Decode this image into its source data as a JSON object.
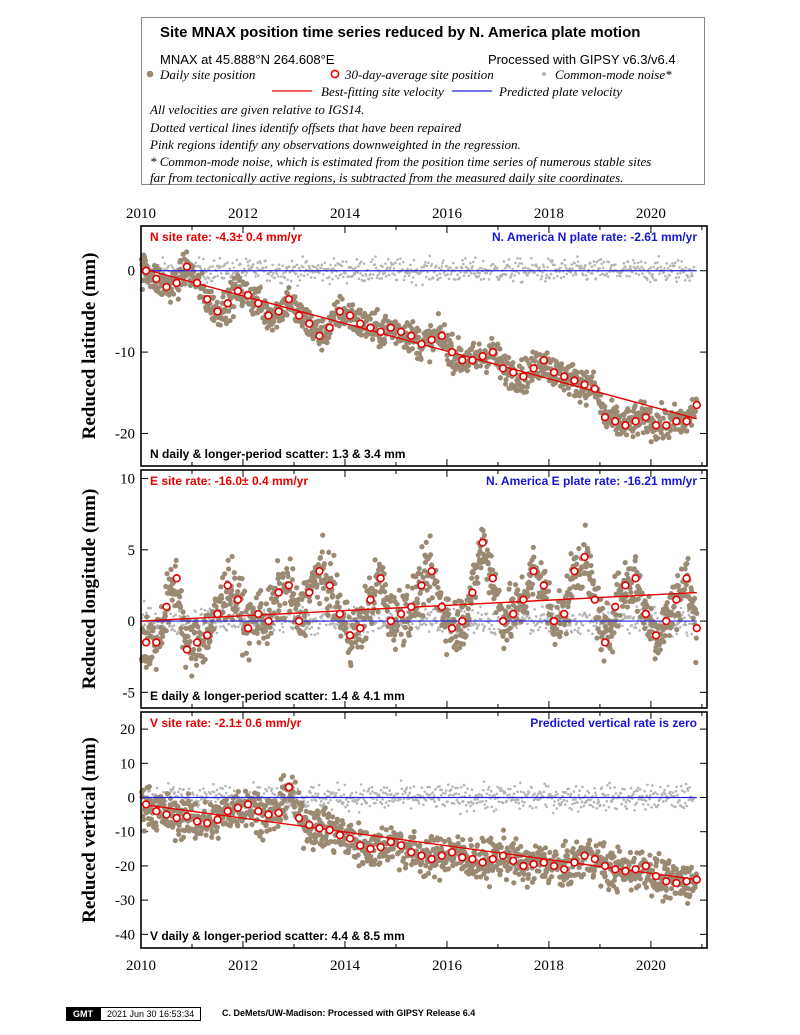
{
  "header": {
    "title": "Site MNAX position time series reduced by N. America plate motion",
    "location": "MNAX at 45.888°N 264.608°E",
    "processing": "Processed with GIPSY v6.3/v6.4",
    "legend": {
      "daily": "Daily site position",
      "avg30": "30-day-average site position",
      "common": "Common-mode noise*",
      "best_fit": "Best-fitting site velocity",
      "predicted": "Predicted plate velocity"
    },
    "notes": [
      "All velocities are given relative to IGS14.",
      "Dotted vertical lines identify offsets that have been repaired",
      "Pink regions identify any observations downweighted in the regression.",
      "* Common-mode noise, which is estimated from the position time series of numerous stable sites",
      "far from tectonically active regions, is subtracted from the measured daily site coordinates."
    ]
  },
  "colors": {
    "daily": "#9b8a73",
    "avg30_edge": "#e60000",
    "common": "#b5b5b5",
    "best_fit": "#e60000",
    "predicted": "#2222dd",
    "site_rate_text": "#e60000",
    "plate_rate_text": "#1515d8"
  },
  "chart_data": [
    {
      "type": "scatter",
      "component": "N",
      "ylabel": "Reduced latitude (mm)",
      "xlim": [
        2010,
        2021.1
      ],
      "ylim": [
        -24,
        5.5
      ],
      "xticks": [
        2010,
        2012,
        2014,
        2016,
        2018,
        2020
      ],
      "yticks": [
        0,
        -10,
        -20
      ],
      "site_rate": "N site rate:  -4.3± 0.4 mm/yr",
      "plate_rate": "N. America N plate rate: -2.61 mm/yr",
      "scatter": "N daily & longer-period scatter:   1.3 &   3.4 mm",
      "fit_line": {
        "x": [
          2010.0,
          2020.9
        ],
        "y": [
          0.3,
          -18.2
        ]
      },
      "predicted_line": {
        "x": [
          2010.0,
          2020.9
        ],
        "y": [
          0,
          0
        ]
      },
      "avg30": {
        "x": [
          2010.1,
          2010.3,
          2010.5,
          2010.7,
          2010.9,
          2011.1,
          2011.3,
          2011.5,
          2011.7,
          2011.9,
          2012.1,
          2012.3,
          2012.5,
          2012.7,
          2012.9,
          2013.1,
          2013.3,
          2013.5,
          2013.7,
          2013.9,
          2014.1,
          2014.3,
          2014.5,
          2014.7,
          2014.9,
          2015.1,
          2015.3,
          2015.5,
          2015.7,
          2015.9,
          2016.1,
          2016.3,
          2016.5,
          2016.7,
          2016.9,
          2017.1,
          2017.3,
          2017.5,
          2017.7,
          2017.9,
          2018.1,
          2018.3,
          2018.5,
          2018.7,
          2018.9,
          2019.1,
          2019.3,
          2019.5,
          2019.7,
          2019.9,
          2020.1,
          2020.3,
          2020.5,
          2020.7,
          2020.9
        ],
        "y": [
          0.0,
          -1.0,
          -2.0,
          -1.5,
          0.5,
          -1.5,
          -3.5,
          -5.0,
          -4.0,
          -2.5,
          -3.0,
          -4.0,
          -5.5,
          -5.0,
          -3.5,
          -5.5,
          -6.5,
          -8.0,
          -7.0,
          -5.0,
          -5.5,
          -6.5,
          -7.0,
          -7.5,
          -7.0,
          -7.5,
          -8.0,
          -9.0,
          -8.5,
          -8.0,
          -10.0,
          -11.0,
          -11.0,
          -10.5,
          -10.0,
          -12.0,
          -12.5,
          -13.0,
          -12.0,
          -11.0,
          -12.5,
          -13.0,
          -13.5,
          -14.0,
          -14.5,
          -18.0,
          -18.5,
          -19.0,
          -18.5,
          -18.0,
          -19.0,
          -19.0,
          -18.5,
          -18.5,
          -16.5
        ]
      }
    },
    {
      "type": "scatter",
      "component": "E",
      "ylabel": "Reduced longitude (mm)",
      "xlim": [
        2010,
        2021.1
      ],
      "ylim": [
        -6.1,
        10.6
      ],
      "xticks": [
        2010,
        2012,
        2014,
        2016,
        2018,
        2020
      ],
      "yticks": [
        10,
        5,
        0,
        -5
      ],
      "site_rate": "E site rate: -16.0± 0.4 mm/yr",
      "plate_rate": "N. America E plate rate: -16.21 mm/yr",
      "scatter": "E daily & longer-period scatter:   1.4 &   4.1 mm",
      "fit_line": {
        "x": [
          2010.0,
          2020.9
        ],
        "y": [
          0.0,
          2.0
        ]
      },
      "predicted_line": {
        "x": [
          2010.0,
          2020.9
        ],
        "y": [
          0,
          0
        ]
      },
      "avg30": {
        "x": [
          2010.1,
          2010.3,
          2010.5,
          2010.7,
          2010.9,
          2011.1,
          2011.3,
          2011.5,
          2011.7,
          2011.9,
          2012.1,
          2012.3,
          2012.5,
          2012.7,
          2012.9,
          2013.1,
          2013.3,
          2013.5,
          2013.7,
          2013.9,
          2014.1,
          2014.3,
          2014.5,
          2014.7,
          2014.9,
          2015.1,
          2015.3,
          2015.5,
          2015.7,
          2015.9,
          2016.1,
          2016.3,
          2016.5,
          2016.7,
          2016.9,
          2017.1,
          2017.3,
          2017.5,
          2017.7,
          2017.9,
          2018.1,
          2018.3,
          2018.5,
          2018.7,
          2018.9,
          2019.1,
          2019.3,
          2019.5,
          2019.7,
          2019.9,
          2020.1,
          2020.3,
          2020.5,
          2020.7,
          2020.9
        ],
        "y": [
          -1.5,
          -1.5,
          1.0,
          3.0,
          -2.0,
          -1.5,
          -1.0,
          0.5,
          2.5,
          1.5,
          -0.5,
          0.5,
          0.0,
          2.0,
          2.5,
          0.0,
          2.0,
          3.5,
          2.5,
          0.5,
          -1.0,
          -0.5,
          1.5,
          3.0,
          0.0,
          0.5,
          1.0,
          2.5,
          3.5,
          1.0,
          -0.5,
          0.0,
          2.0,
          5.5,
          3.0,
          0.0,
          0.5,
          1.5,
          3.5,
          2.5,
          0.0,
          0.5,
          3.5,
          4.5,
          1.5,
          -1.5,
          1.0,
          2.5,
          3.0,
          0.5,
          -1.0,
          0.0,
          1.5,
          3.0,
          -0.5
        ]
      }
    },
    {
      "type": "scatter",
      "component": "V",
      "ylabel": "Reduced vertical (mm)",
      "xlim": [
        2010,
        2021.1
      ],
      "ylim": [
        -44,
        25
      ],
      "xticks": [
        2010,
        2012,
        2014,
        2016,
        2018,
        2020
      ],
      "yticks": [
        20,
        10,
        0,
        -10,
        -20,
        -30,
        -40
      ],
      "site_rate": "V site rate:  -2.1± 0.6 mm/yr",
      "plate_rate": "Predicted vertical rate is zero",
      "scatter": "V daily & longer-period scatter:   4.4 &   8.5 mm",
      "fit_line": {
        "x": [
          2010.0,
          2020.9
        ],
        "y": [
          -2.0,
          -24.0
        ]
      },
      "predicted_line": {
        "x": [
          2010.0,
          2020.9
        ],
        "y": [
          0,
          0
        ]
      },
      "avg30": {
        "x": [
          2010.1,
          2010.3,
          2010.5,
          2010.7,
          2010.9,
          2011.1,
          2011.3,
          2011.5,
          2011.7,
          2011.9,
          2012.1,
          2012.3,
          2012.5,
          2012.7,
          2012.9,
          2013.1,
          2013.3,
          2013.5,
          2013.7,
          2013.9,
          2014.1,
          2014.3,
          2014.5,
          2014.7,
          2014.9,
          2015.1,
          2015.3,
          2015.5,
          2015.7,
          2015.9,
          2016.1,
          2016.3,
          2016.5,
          2016.7,
          2016.9,
          2017.1,
          2017.3,
          2017.5,
          2017.7,
          2017.9,
          2018.1,
          2018.3,
          2018.5,
          2018.7,
          2018.9,
          2019.1,
          2019.3,
          2019.5,
          2019.7,
          2019.9,
          2020.1,
          2020.3,
          2020.5,
          2020.7,
          2020.9
        ],
        "y": [
          -2.0,
          -4.0,
          -5.0,
          -6.0,
          -5.5,
          -7.0,
          -7.5,
          -6.5,
          -4.0,
          -3.0,
          -2.0,
          -4.0,
          -5.0,
          -4.5,
          3.0,
          -6.0,
          -8.0,
          -9.0,
          -9.5,
          -11.0,
          -12.0,
          -14.0,
          -15.0,
          -14.5,
          -13.0,
          -14.0,
          -16.0,
          -17.0,
          -18.0,
          -17.0,
          -16.0,
          -17.5,
          -18.0,
          -19.0,
          -18.0,
          -17.0,
          -18.5,
          -20.0,
          -19.5,
          -19.0,
          -20.0,
          -21.0,
          -19.0,
          -17.0,
          -18.0,
          -20.0,
          -21.0,
          -21.5,
          -21.0,
          -20.0,
          -23.0,
          -24.5,
          -25.0,
          -24.5,
          -24.0
        ]
      }
    }
  ],
  "footer": {
    "logo": "GMT",
    "timestamp": "2021 Jun 30 16:53:34",
    "credit": "C. DeMets/UW-Madison: Processed with GIPSY Release 6.4"
  }
}
